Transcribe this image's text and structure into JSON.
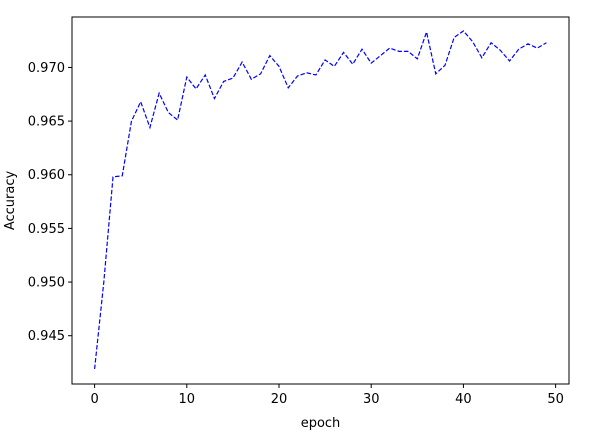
{
  "chart_data": {
    "type": "line",
    "title": "",
    "xlabel": "epoch",
    "ylabel": "Accuracy",
    "xlim": [
      -2.45,
      51.45
    ],
    "ylim": [
      0.9405,
      0.9747
    ],
    "xticks": [
      0,
      10,
      20,
      30,
      40,
      50
    ],
    "yticks": [
      0.945,
      0.95,
      0.955,
      0.96,
      0.965,
      0.97
    ],
    "ytick_labels": [
      "0.945",
      "0.950",
      "0.955",
      "0.960",
      "0.965",
      "0.970"
    ],
    "grid": false,
    "legend": "none",
    "line_color": "#0000ff",
    "line_style": "dashed",
    "series": [
      {
        "x": [
          0,
          1,
          2,
          3,
          4,
          5,
          6,
          7,
          8,
          9,
          10,
          11,
          12,
          13,
          14,
          15,
          16,
          17,
          18,
          19,
          20,
          21,
          22,
          23,
          24,
          25,
          26,
          27,
          28,
          29,
          30,
          31,
          32,
          33,
          34,
          35,
          36,
          37,
          38,
          39,
          40,
          41,
          42,
          43,
          44,
          45,
          46,
          47,
          48,
          49
        ],
        "values": [
          0.9419,
          0.95,
          0.9598,
          0.9599,
          0.965,
          0.9668,
          0.9644,
          0.9676,
          0.9658,
          0.9651,
          0.9691,
          0.968,
          0.9693,
          0.9671,
          0.9687,
          0.969,
          0.9705,
          0.9689,
          0.9694,
          0.9711,
          0.9701,
          0.9681,
          0.9692,
          0.9695,
          0.9693,
          0.9707,
          0.9701,
          0.9714,
          0.9703,
          0.9717,
          0.9704,
          0.9711,
          0.9718,
          0.9715,
          0.9715,
          0.9708,
          0.9733,
          0.9694,
          0.9702,
          0.9728,
          0.9734,
          0.9724,
          0.9709,
          0.9723,
          0.9716,
          0.9706,
          0.9717,
          0.9722,
          0.9718,
          0.9723
        ]
      }
    ]
  }
}
